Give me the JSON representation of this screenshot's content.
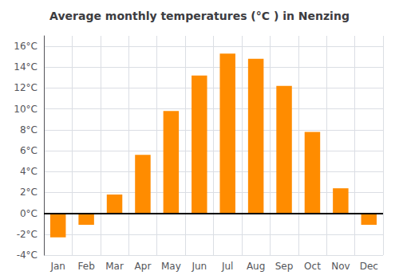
{
  "chart_data": {
    "type": "bar",
    "title": "Average monthly temperatures (°C ) in Nenzing",
    "categories": [
      "Jan",
      "Feb",
      "Mar",
      "Apr",
      "May",
      "Jun",
      "Jul",
      "Aug",
      "Sep",
      "Oct",
      "Nov",
      "Dec"
    ],
    "values": [
      -2.3,
      -1.1,
      1.8,
      5.6,
      9.8,
      13.2,
      15.3,
      14.8,
      12.2,
      7.8,
      2.4,
      -1.1
    ],
    "color": "#FF8C00",
    "ylim": [
      -4,
      17
    ],
    "yticks": [
      {
        "value": -4,
        "label": "-4°C"
      },
      {
        "value": -2,
        "label": "-2°C"
      },
      {
        "value": 0,
        "label": "0°C"
      },
      {
        "value": 2,
        "label": "2°C"
      },
      {
        "value": 4,
        "label": "4°C"
      },
      {
        "value": 6,
        "label": "6°C"
      },
      {
        "value": 8,
        "label": "8°C"
      },
      {
        "value": 10,
        "label": "10°C"
      },
      {
        "value": 12,
        "label": "12°C"
      },
      {
        "value": 14,
        "label": "14°C"
      },
      {
        "value": 16,
        "label": "16°C"
      }
    ],
    "grid": true
  }
}
